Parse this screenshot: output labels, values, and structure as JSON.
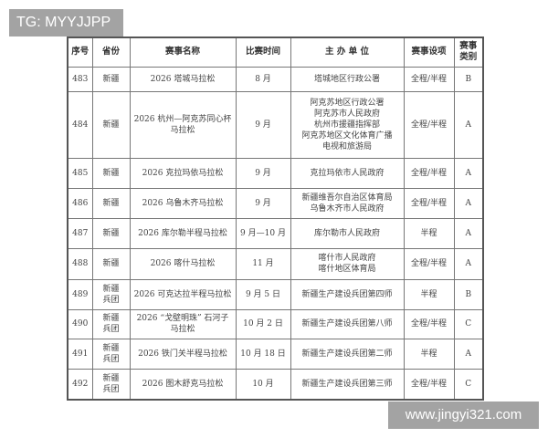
{
  "watermarks": {
    "top": "TG: MYYJJPP",
    "bottom": "www.jingyi321.com"
  },
  "table": {
    "headers": [
      "序号",
      "省份",
      "赛事名称",
      "比赛时间",
      "主 办 单 位",
      "赛事设项",
      "赛事\n类别"
    ],
    "rows": [
      [
        "483",
        "新疆",
        "2026 塔城马拉松",
        "8 月",
        "塔城地区行政公署",
        "全程/半程",
        "B"
      ],
      [
        "484",
        "新疆",
        "2026 杭州—阿克苏同心杯\n马拉松",
        "9 月",
        "阿克苏地区行政公署\n阿克苏市人民政府\n杭州市援疆指挥部\n阿克苏地区文化体育广播\n电视和旅游局",
        "全程/半程",
        "A"
      ],
      [
        "485",
        "新疆",
        "2026 克拉玛依马拉松",
        "9 月",
        "克拉玛依市人民政府",
        "全程/半程",
        "A"
      ],
      [
        "486",
        "新疆",
        "2026 乌鲁木齐马拉松",
        "9 月",
        "新疆维吾尔自治区体育局\n乌鲁木齐市人民政府",
        "全程/半程",
        "A"
      ],
      [
        "487",
        "新疆",
        "2026 库尔勒半程马拉松",
        "9 月—10 月",
        "库尔勒市人民政府",
        "半程",
        "A"
      ],
      [
        "488",
        "新疆",
        "2026 喀什马拉松",
        "11 月",
        "喀什市人民政府\n喀什地区体育局",
        "全程/半程",
        "A"
      ],
      [
        "489",
        "新疆\n兵团",
        "2026 可克达拉半程马拉松",
        "9 月 5 日",
        "新疆生产建设兵团第四师",
        "半程",
        "B"
      ],
      [
        "490",
        "新疆\n兵团",
        "2026 “戈壁明珠” 石河子\n马拉松",
        "10 月 2 日",
        "新疆生产建设兵团第八师",
        "全程/半程",
        "C"
      ],
      [
        "491",
        "新疆\n兵团",
        "2026 铁门关半程马拉松",
        "10 月 18 日",
        "新疆生产建设兵团第二师",
        "半程",
        "A"
      ],
      [
        "492",
        "新疆\n兵团",
        "2026 图木舒克马拉松",
        "10 月",
        "新疆生产建设兵团第三师",
        "全程/半程",
        "C"
      ]
    ]
  }
}
